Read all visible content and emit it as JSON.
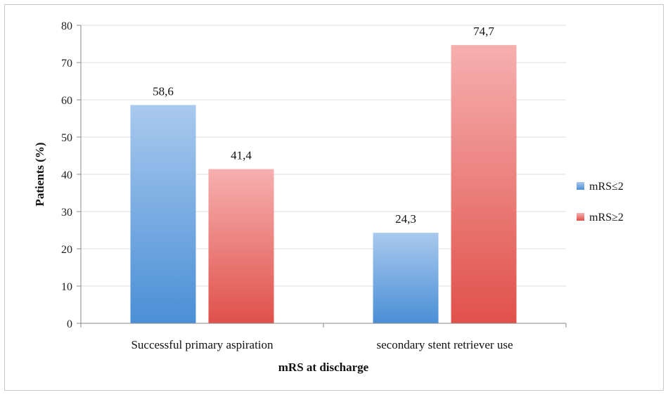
{
  "chart_data": {
    "type": "bar",
    "title": "",
    "xlabel": "mRS at discharge",
    "ylabel": "Patients (%)",
    "categories": [
      "Successful primary aspiration",
      "secondary stent retriever use"
    ],
    "series": [
      {
        "name": "mRS≤2",
        "values": [
          58.6,
          24.3
        ],
        "labels": [
          "58,6",
          "24,3"
        ],
        "color": "#4a8fd6",
        "color_light": "#a9c9ee"
      },
      {
        "name": "mRS≥2",
        "values": [
          41.4,
          74.7
        ],
        "labels": [
          "41,4",
          "74,7"
        ],
        "color": "#e0514a",
        "color_light": "#f6b0b0"
      }
    ],
    "ylim": [
      0,
      80
    ],
    "yticks": [
      0,
      10,
      20,
      30,
      40,
      50,
      60,
      70,
      80
    ],
    "grid": true,
    "legend": "right"
  }
}
